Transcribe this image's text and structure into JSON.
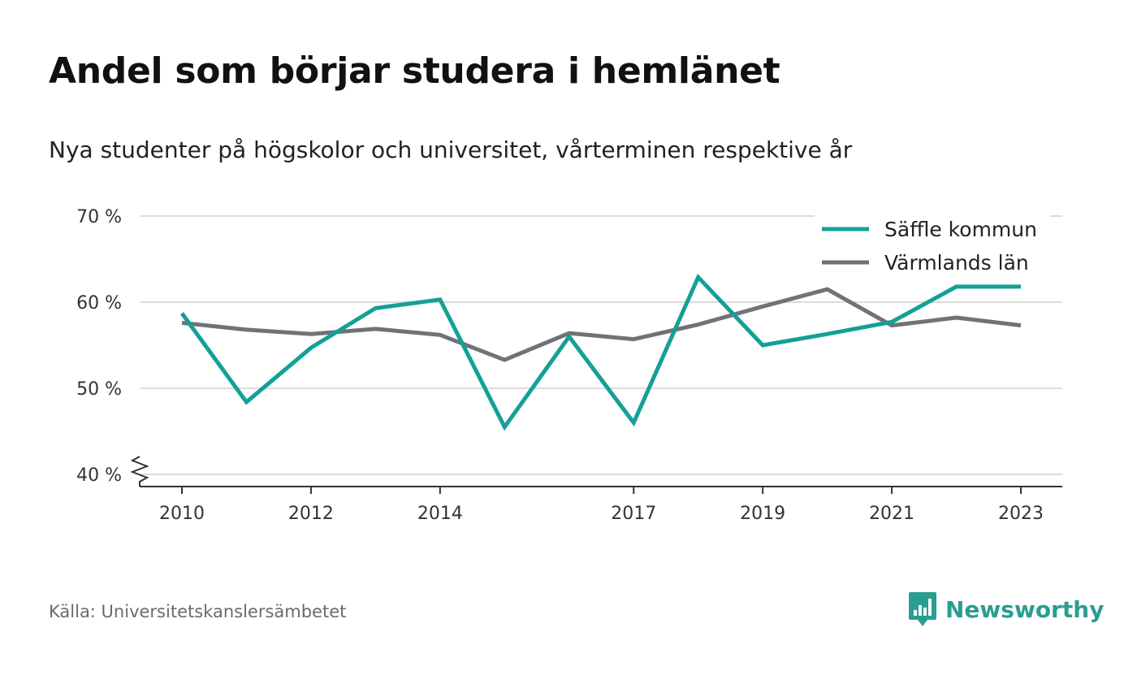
{
  "header": {
    "title": "Andel som börjar studera i hemlänet",
    "subtitle": "Nya studenter på högskolor och universitet, vårterminen respektive år"
  },
  "footer": {
    "source": "Källa: Universitetskanslersämbetet",
    "brand": "Newsworthy"
  },
  "icons": {
    "brand_logo": "bar-chart-speech-bubble-icon"
  },
  "chart_data": {
    "type": "line",
    "x": [
      2010,
      2011,
      2012,
      2013,
      2014,
      2015,
      2016,
      2017,
      2018,
      2019,
      2020,
      2021,
      2022,
      2023
    ],
    "xticks": [
      2010,
      2012,
      2014,
      2017,
      2019,
      2021,
      2023
    ],
    "ylim": [
      40,
      70
    ],
    "yticks": [
      40,
      50,
      60,
      70
    ],
    "ytick_labels": [
      "40 %",
      "50 %",
      "60 %",
      "70 %"
    ],
    "grid": true,
    "y_axis_break": true,
    "legend_position": "top-right",
    "series": [
      {
        "name": "Säffle kommun",
        "color": "#14a096",
        "values": [
          58.7,
          48.4,
          54.7,
          59.3,
          60.3,
          45.5,
          56.0,
          46.0,
          62.9,
          55.0,
          56.3,
          57.7,
          61.8,
          61.8
        ]
      },
      {
        "name": "Värmlands län",
        "color": "#737178",
        "values": [
          57.6,
          56.8,
          56.3,
          56.9,
          56.2,
          53.3,
          56.4,
          55.7,
          57.4,
          59.5,
          61.5,
          57.3,
          58.2,
          57.3
        ]
      }
    ]
  }
}
